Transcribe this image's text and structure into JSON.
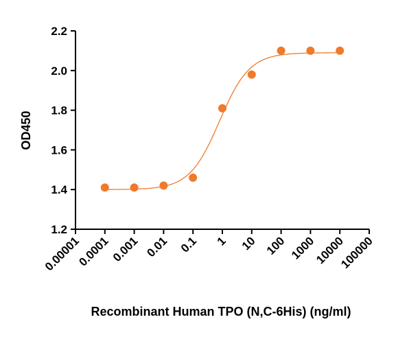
{
  "chart_data": {
    "type": "scatter",
    "title": "",
    "xlabel": "Recombinant Human TPO (N,C-6His) (ng/ml)",
    "ylabel": "OD450",
    "x_scale": "log",
    "xlim": [
      1e-05,
      100000
    ],
    "ylim": [
      1.2,
      2.2
    ],
    "x_ticks": [
      1e-05,
      0.0001,
      0.001,
      0.01,
      0.1,
      1,
      10,
      100,
      1000,
      10000,
      100000
    ],
    "x_tick_labels": [
      "0.00001",
      "0.0001",
      "0.001",
      "0.01",
      "0.1",
      "1",
      "10",
      "100",
      "1000",
      "10000",
      "100000"
    ],
    "y_ticks": [
      1.2,
      1.4,
      1.6,
      1.8,
      2.0,
      2.2
    ],
    "y_tick_labels": [
      "1.2",
      "1.4",
      "1.6",
      "1.8",
      "2.0",
      "2.2"
    ],
    "grid": false,
    "series": [
      {
        "color": "#F07A2B",
        "x": [
          0.0001,
          0.001,
          0.01,
          0.1,
          1,
          10,
          100,
          1000,
          10000
        ],
        "y": [
          1.41,
          1.41,
          1.42,
          1.46,
          1.81,
          1.98,
          2.1,
          2.1,
          2.1
        ]
      }
    ],
    "fit_curve": {
      "type": "4PL",
      "color": "#F07A2B",
      "bottom": 1.4,
      "top": 2.09,
      "ec50": 0.8,
      "hill": 0.85
    }
  }
}
